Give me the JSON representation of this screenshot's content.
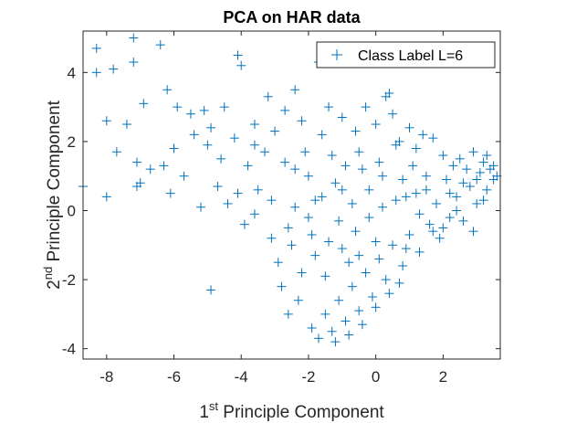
{
  "chart_data": {
    "type": "scatter",
    "title": "PCA on HAR data",
    "xlabel": {
      "prefix": "1",
      "sup": "st",
      "text": " Principle Component"
    },
    "ylabel": {
      "prefix": "2",
      "sup": "nd",
      "text": " Principle Component"
    },
    "xlim": [
      -8.7,
      3.7
    ],
    "ylim": [
      -4.3,
      5.2
    ],
    "xticks": [
      -8,
      -6,
      -4,
      -2,
      0,
      2
    ],
    "xtick_labels": [
      "-8",
      "-6",
      "-4",
      "-2",
      "0",
      "2"
    ],
    "yticks": [
      -4,
      -2,
      0,
      2,
      4
    ],
    "ytick_labels": [
      "-4",
      "-2",
      "0",
      "2",
      "4"
    ],
    "grid": false,
    "legend": {
      "position": "top-right",
      "entries": [
        "Class Label L=6"
      ]
    },
    "marker": "plus",
    "color": "#0072bd",
    "series": [
      {
        "name": "Class Label L=6",
        "points": [
          [
            -8.3,
            4.7
          ],
          [
            -7.2,
            5.0
          ],
          [
            -6.4,
            4.8
          ],
          [
            -8.3,
            4.0
          ],
          [
            -7.2,
            4.3
          ],
          [
            -7.8,
            4.1
          ],
          [
            -4.1,
            4.5
          ],
          [
            -4.0,
            4.2
          ],
          [
            -8.0,
            2.6
          ],
          [
            -7.4,
            2.5
          ],
          [
            -6.9,
            3.1
          ],
          [
            -6.2,
            3.5
          ],
          [
            -5.9,
            3.0
          ],
          [
            -5.5,
            2.8
          ],
          [
            -5.1,
            2.9
          ],
          [
            -7.7,
            1.7
          ],
          [
            -7.1,
            1.4
          ],
          [
            -6.7,
            1.2
          ],
          [
            -6.3,
            1.3
          ],
          [
            -7.0,
            0.8
          ],
          [
            -7.1,
            0.7
          ],
          [
            -8.0,
            0.4
          ],
          [
            -8.7,
            0.7
          ],
          [
            -6.1,
            0.5
          ],
          [
            -6.0,
            1.8
          ],
          [
            -5.7,
            1.0
          ],
          [
            -5.4,
            2.2
          ],
          [
            -5.0,
            1.9
          ],
          [
            -4.9,
            2.4
          ],
          [
            -4.5,
            3.0
          ],
          [
            -4.2,
            2.1
          ],
          [
            -4.9,
            -2.3
          ],
          [
            -5.2,
            0.1
          ],
          [
            -4.7,
            0.7
          ],
          [
            -4.6,
            1.5
          ],
          [
            -4.4,
            0.2
          ],
          [
            -3.8,
            1.3
          ],
          [
            -3.6,
            2.5
          ],
          [
            -3.6,
            1.9
          ],
          [
            -3.2,
            3.3
          ],
          [
            -3.3,
            1.7
          ],
          [
            -3.5,
            0.6
          ],
          [
            -3.1,
            0.3
          ],
          [
            -3.0,
            2.3
          ],
          [
            -2.7,
            2.9
          ],
          [
            -2.7,
            1.4
          ],
          [
            -2.4,
            3.5
          ],
          [
            -2.4,
            0.1
          ],
          [
            -2.5,
            -1.0
          ],
          [
            -2.6,
            -0.5
          ],
          [
            -2.2,
            2.6
          ],
          [
            -2.1,
            1.7
          ],
          [
            -2.0,
            1.0
          ],
          [
            -1.9,
            -0.7
          ],
          [
            -1.7,
            4.3
          ],
          [
            -1.6,
            2.2
          ],
          [
            -1.6,
            0.4
          ],
          [
            -1.4,
            3.0
          ],
          [
            -1.3,
            1.6
          ],
          [
            -1.2,
            0.8
          ],
          [
            -1.1,
            -0.3
          ],
          [
            -1.0,
            2.7
          ],
          [
            -0.9,
            1.3
          ],
          [
            -0.7,
            0.2
          ],
          [
            -0.6,
            2.3
          ],
          [
            -0.5,
            1.7
          ],
          [
            -0.3,
            3.0
          ],
          [
            -0.2,
            0.6
          ],
          [
            0.0,
            2.5
          ],
          [
            0.1,
            1.4
          ],
          [
            0.3,
            3.3
          ],
          [
            0.4,
            3.4
          ],
          [
            0.5,
            2.8
          ],
          [
            0.6,
            1.9
          ],
          [
            0.7,
            2.0
          ],
          [
            0.8,
            0.9
          ],
          [
            1.0,
            2.4
          ],
          [
            1.1,
            1.3
          ],
          [
            1.2,
            0.5
          ],
          [
            1.4,
            2.2
          ],
          [
            1.5,
            1.0
          ],
          [
            1.7,
            2.1
          ],
          [
            1.8,
            0.2
          ],
          [
            2.0,
            1.6
          ],
          [
            2.1,
            0.9
          ],
          [
            2.3,
            1.3
          ],
          [
            2.4,
            0.4
          ],
          [
            2.5,
            1.5
          ],
          [
            2.6,
            -0.3
          ],
          [
            2.7,
            1.2
          ],
          [
            2.8,
            0.7
          ],
          [
            2.9,
            1.7
          ],
          [
            3.0,
            0.2
          ],
          [
            3.1,
            1.1
          ],
          [
            3.2,
            1.4
          ],
          [
            3.3,
            0.6
          ],
          [
            3.4,
            1.2
          ],
          [
            3.5,
            0.9
          ],
          [
            3.6,
            1.0
          ],
          [
            3.3,
            1.6
          ],
          [
            2.9,
            -0.6
          ],
          [
            2.2,
            -0.2
          ],
          [
            1.9,
            -0.8
          ],
          [
            1.6,
            -0.4
          ],
          [
            1.3,
            -1.2
          ],
          [
            1.0,
            -0.7
          ],
          [
            0.8,
            -1.6
          ],
          [
            0.5,
            -1.0
          ],
          [
            0.3,
            -2.0
          ],
          [
            0.1,
            -1.4
          ],
          [
            -0.1,
            -2.5
          ],
          [
            -0.3,
            -1.8
          ],
          [
            -0.5,
            -2.9
          ],
          [
            -0.7,
            -2.2
          ],
          [
            -0.9,
            -3.2
          ],
          [
            -1.1,
            -2.6
          ],
          [
            -1.3,
            -3.5
          ],
          [
            -1.5,
            -3.0
          ],
          [
            -1.7,
            -3.7
          ],
          [
            -1.9,
            -3.4
          ],
          [
            -1.2,
            -3.8
          ],
          [
            -0.8,
            -3.6
          ],
          [
            -0.4,
            -3.3
          ],
          [
            0.0,
            -2.8
          ],
          [
            0.4,
            -2.4
          ],
          [
            0.7,
            -2.1
          ],
          [
            -2.2,
            -1.8
          ],
          [
            -2.3,
            -2.6
          ],
          [
            -2.6,
            -3.0
          ],
          [
            -1.8,
            -1.3
          ],
          [
            -1.5,
            -1.9
          ],
          [
            -1.0,
            -1.1
          ],
          [
            -0.6,
            -0.6
          ],
          [
            -0.2,
            -0.2
          ],
          [
            0.2,
            0.1
          ],
          [
            0.6,
            0.3
          ],
          [
            -2.9,
            -1.5
          ],
          [
            -2.8,
            -2.2
          ],
          [
            -3.1,
            -0.8
          ],
          [
            -1.4,
            -0.9
          ],
          [
            -0.8,
            -1.5
          ],
          [
            1.3,
            -0.1
          ],
          [
            1.5,
            0.6
          ],
          [
            0.9,
            0.4
          ],
          [
            2.4,
            0.0
          ],
          [
            2.0,
            -0.5
          ],
          [
            3.5,
            1.3
          ],
          [
            3.0,
            0.9
          ],
          [
            2.6,
            0.8
          ],
          [
            1.2,
            1.8
          ],
          [
            0.2,
            1.0
          ],
          [
            -0.4,
            1.2
          ],
          [
            -1.0,
            0.6
          ],
          [
            -1.8,
            0.3
          ],
          [
            -2.0,
            -0.2
          ],
          [
            -0.5,
            -1.3
          ],
          [
            0.0,
            -0.9
          ],
          [
            0.9,
            -1.1
          ],
          [
            1.7,
            -0.6
          ],
          [
            2.2,
            0.5
          ],
          [
            3.2,
            0.3
          ],
          [
            -2.4,
            1.2
          ],
          [
            -3.6,
            -0.1
          ],
          [
            -4.1,
            0.5
          ],
          [
            -3.9,
            -0.4
          ]
        ]
      }
    ]
  }
}
